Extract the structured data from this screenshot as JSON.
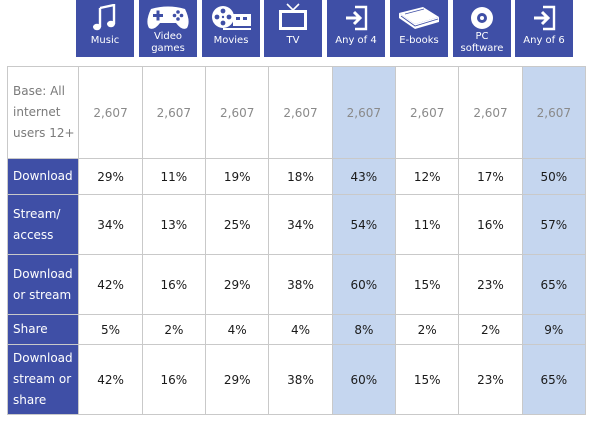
{
  "columns": [
    {
      "label": "Music",
      "icon": "music-note-icon"
    },
    {
      "label": "Video games",
      "icon": "gamepad-icon"
    },
    {
      "label": "Movies",
      "icon": "film-reel-icon"
    },
    {
      "label": "TV",
      "icon": "tv-icon"
    },
    {
      "label": "Any of 4",
      "icon": "enter-arrow-icon"
    },
    {
      "label": "E-books",
      "icon": "books-icon"
    },
    {
      "label": "PC software",
      "icon": "disc-icon"
    },
    {
      "label": "Any of 6",
      "icon": "enter-arrow-icon"
    }
  ],
  "highlighted_columns": [
    "Any of 4",
    "Any of 6"
  ],
  "colors": {
    "header_bg": "#3f4fa6",
    "highlight_bg": "#c5d6ef",
    "header_text": "#ffffff"
  },
  "rows": [
    {
      "label": "Base: All internet users 12+",
      "values": [
        "2,607",
        "2,607",
        "2,607",
        "2,607",
        "2,607",
        "2,607",
        "2,607",
        "2,607"
      ]
    },
    {
      "label": "Download",
      "values": [
        "29%",
        "11%",
        "19%",
        "18%",
        "43%",
        "12%",
        "17%",
        "50%"
      ]
    },
    {
      "label": "Stream/ access",
      "values": [
        "34%",
        "13%",
        "25%",
        "34%",
        "54%",
        "11%",
        "16%",
        "57%"
      ]
    },
    {
      "label": "Download or stream",
      "values": [
        "42%",
        "16%",
        "29%",
        "38%",
        "60%",
        "15%",
        "23%",
        "65%"
      ]
    },
    {
      "label": "Share",
      "values": [
        "5%",
        "2%",
        "4%",
        "4%",
        "8%",
        "2%",
        "2%",
        "9%"
      ]
    },
    {
      "label": "Download stream or share",
      "values": [
        "42%",
        "16%",
        "29%",
        "38%",
        "60%",
        "15%",
        "23%",
        "65%"
      ]
    }
  ]
}
